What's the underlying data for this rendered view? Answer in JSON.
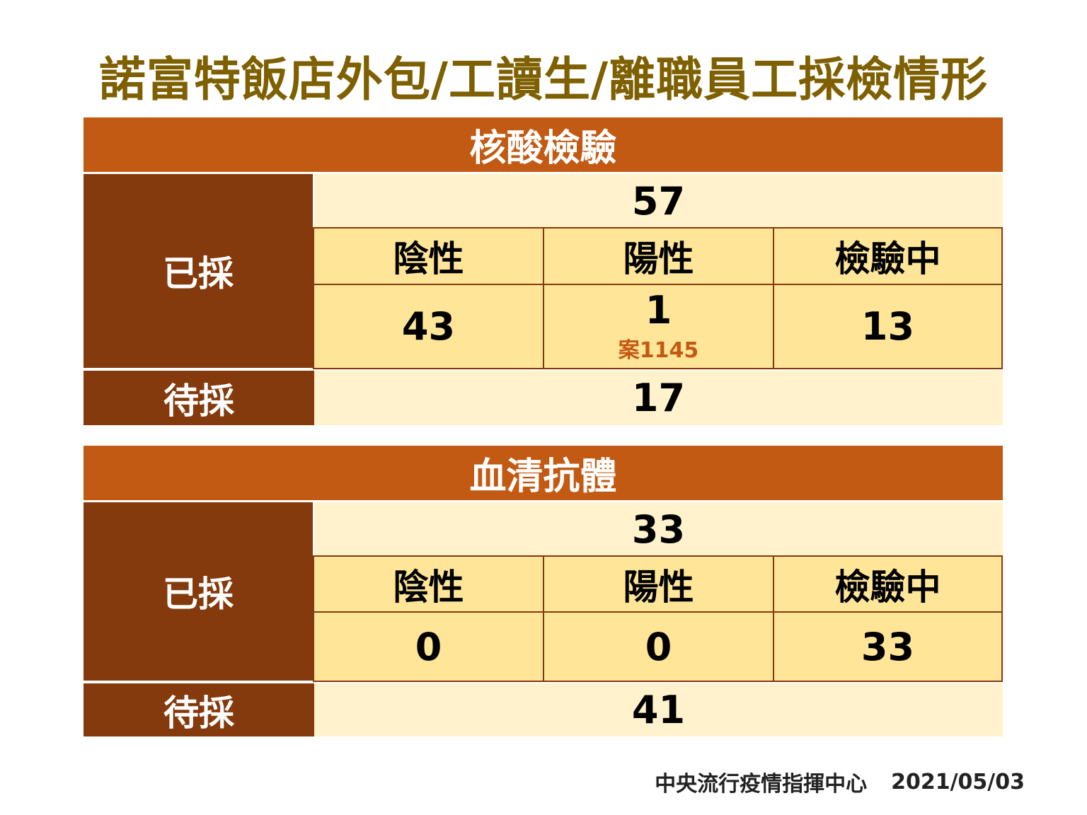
{
  "title": "諾富特飯店外包/工讀生/離職員工採檢情形",
  "colors": {
    "header": "#C35A13",
    "side": "#843A0C",
    "total_bg": "#FFF2CC",
    "cell_bg": "#FFE598",
    "title": "#7F6000"
  },
  "sections": [
    {
      "heading": "核酸檢驗",
      "collected_label": "已採",
      "collected_total": "57",
      "columns": [
        "陰性",
        "陽性",
        "檢驗中"
      ],
      "values": [
        "43",
        "1",
        "13"
      ],
      "positive_note": "案1145",
      "pending_label": "待採",
      "pending": "17"
    },
    {
      "heading": "血清抗體",
      "collected_label": "已採",
      "collected_total": "33",
      "columns": [
        "陰性",
        "陽性",
        "檢驗中"
      ],
      "values": [
        "0",
        "0",
        "33"
      ],
      "pending_label": "待採",
      "pending": "41"
    }
  ],
  "footer": {
    "source": "中央流行疫情指揮中心",
    "date": "2021/05/03"
  }
}
